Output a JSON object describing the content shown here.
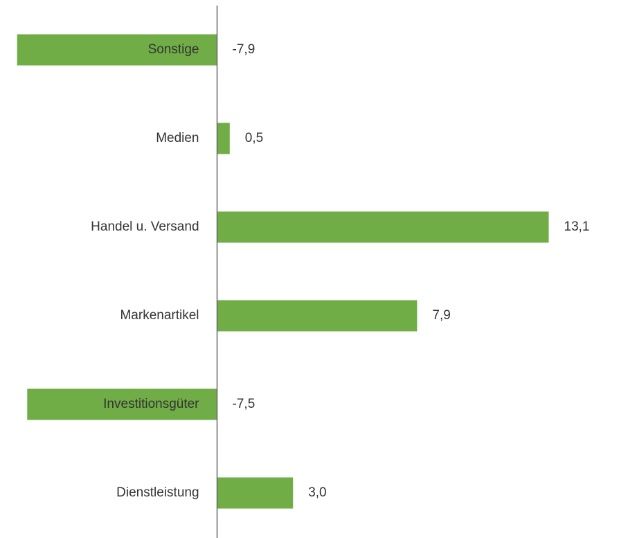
{
  "chart_data": {
    "type": "bar",
    "orientation": "horizontal",
    "categories": [
      "Sonstige",
      "Medien",
      "Handel u. Versand",
      "Markenartikel",
      "Investitionsgüter",
      "Dienstleistung"
    ],
    "values": [
      -7.9,
      0.5,
      13.1,
      7.9,
      -7.5,
      3.0
    ],
    "value_labels": [
      "-7,9",
      "0,5",
      "13,1",
      "7,9",
      "-7,5",
      "3,0"
    ],
    "color": "#70ad47",
    "xlim": [
      -8,
      15
    ]
  }
}
